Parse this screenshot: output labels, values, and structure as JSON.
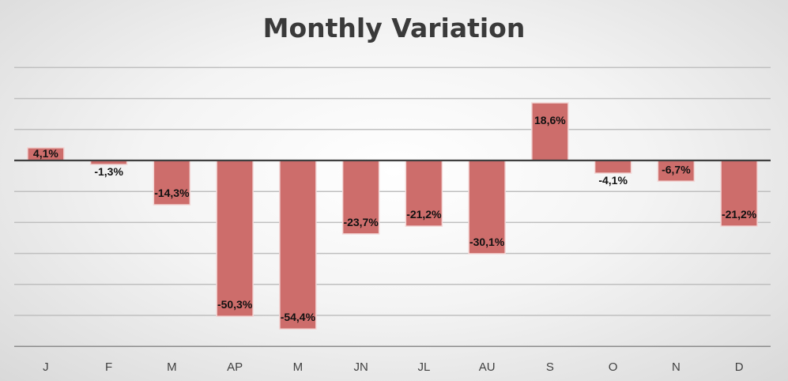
{
  "chart_data": {
    "type": "bar",
    "title": "Monthly Variation",
    "xlabel": "",
    "ylabel": "",
    "categories": [
      "J",
      "F",
      "M",
      "AP",
      "M",
      "JN",
      "JL",
      "AU",
      "S",
      "O",
      "N",
      "D"
    ],
    "values": [
      4.1,
      -1.3,
      -14.3,
      -50.3,
      -54.4,
      -23.7,
      -21.2,
      -30.1,
      18.6,
      -4.1,
      -6.7,
      -21.2
    ],
    "data_labels": [
      "4,1%",
      "-1,3%",
      "-14,3%",
      "-50,3%",
      "-54,4%",
      "-23,7%",
      "-21,2%",
      "-30,1%",
      "18,6%",
      "-4,1%",
      "-6,7%",
      "-21,2%"
    ],
    "ylim": [
      -60,
      30
    ],
    "grid": true,
    "legend": "none",
    "bar_color": "#c0504d",
    "bar_fill": "#cd6d6b"
  }
}
